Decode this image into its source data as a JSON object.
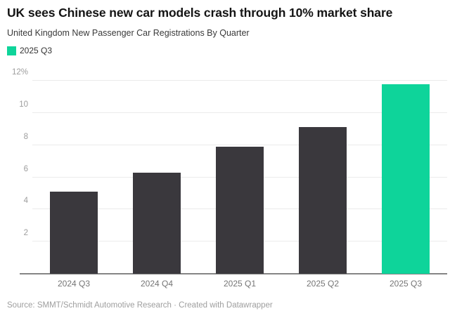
{
  "header": {
    "title": "UK sees Chinese new car models crash through 10% market share",
    "subtitle": "United Kingdom New Passenger Car Registrations By Quarter"
  },
  "legend": {
    "items": [
      {
        "label": "2025 Q3",
        "color": "#0ed49a"
      }
    ]
  },
  "chart_data": {
    "type": "bar",
    "title": "UK sees Chinese new car models crash through 10% market share",
    "subtitle": "United Kingdom New Passenger Car Registrations By Quarter",
    "categories": [
      "2024 Q3",
      "2024 Q4",
      "2025 Q1",
      "2025 Q2",
      "2025 Q3"
    ],
    "values": [
      5.1,
      6.3,
      7.9,
      9.1,
      11.8
    ],
    "bar_colors": [
      "#3a383d",
      "#3a383d",
      "#3a383d",
      "#3a383d",
      "#0ed49a"
    ],
    "xlabel": "",
    "ylabel": "",
    "ylim": [
      0,
      12
    ],
    "y_ticks": [
      2,
      4,
      6,
      8,
      10,
      12
    ],
    "y_tick_labels": [
      "2",
      "4",
      "6",
      "8",
      "10",
      "12%"
    ],
    "grid": true,
    "legend_position": "top-left",
    "colors": {
      "highlight": "#0ed49a",
      "default_bar": "#3a383d",
      "gridline": "#ebebeb",
      "baseline": "#858585"
    }
  },
  "footer": {
    "text": "Source: SMMT/Schmidt Automotive Research · Created with Datawrapper"
  }
}
